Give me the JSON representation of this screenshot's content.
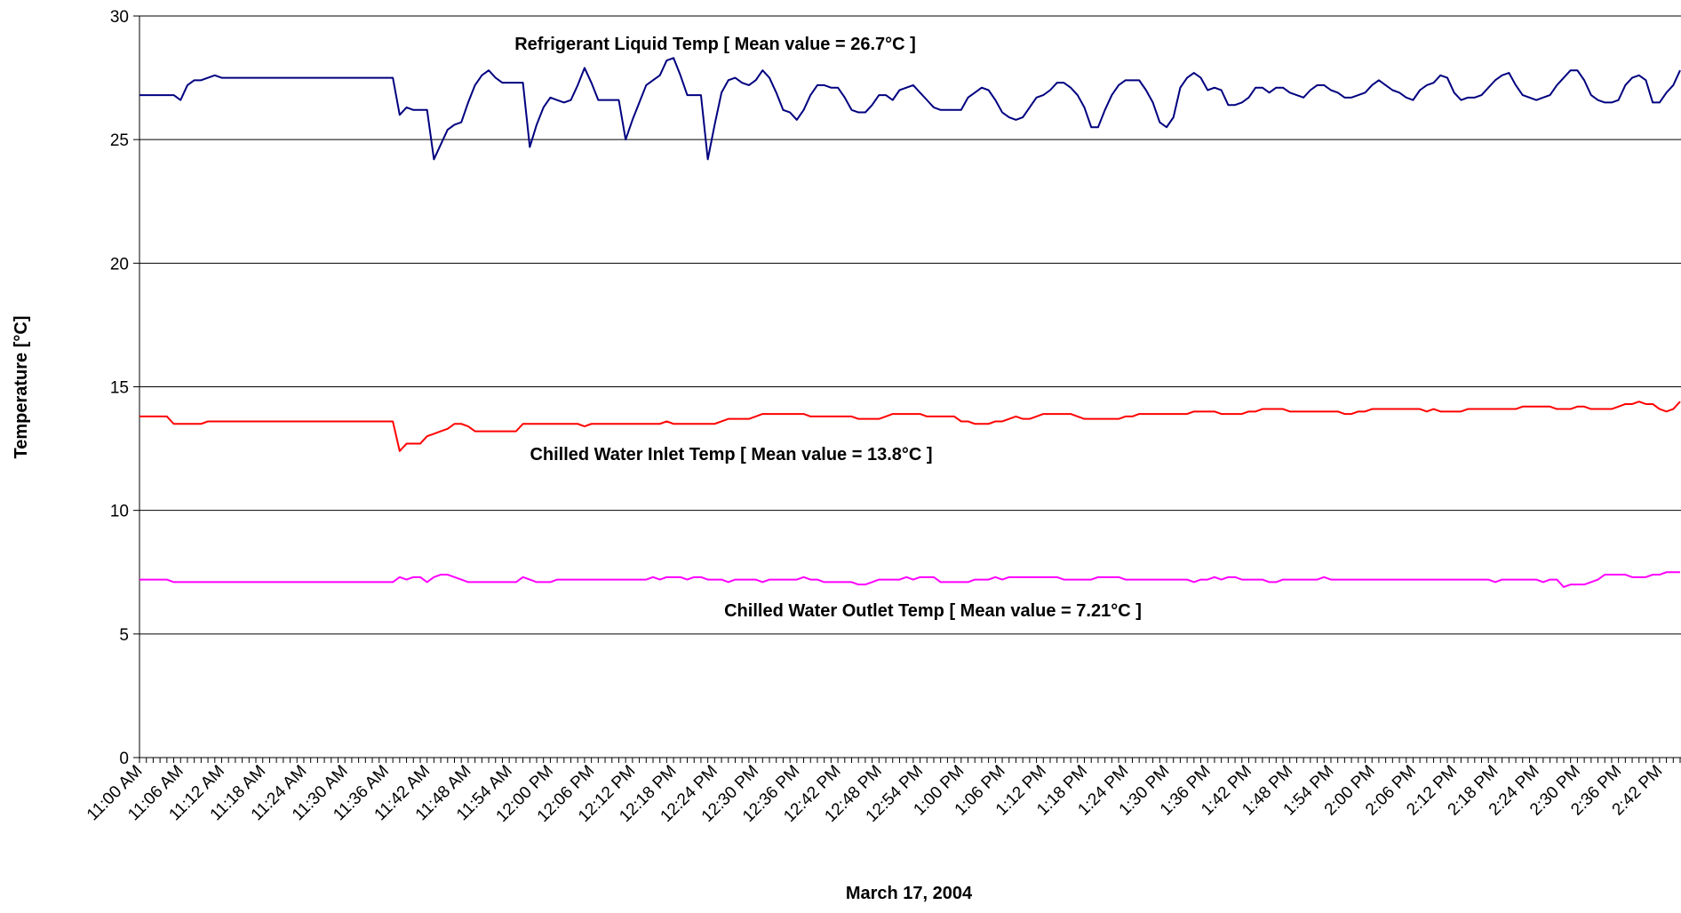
{
  "chart_data": {
    "type": "line",
    "ylabel": "Temperature [°C]",
    "xlabel": "March 17, 2004",
    "annotations": [
      "Refrigerant Liquid Temp [ Mean value = 26.7°C ]",
      "Chilled Water Inlet Temp [ Mean value = 13.8°C ]",
      "Chilled Water Outlet Temp [ Mean value = 7.21°C ]"
    ],
    "ylim": [
      0,
      30
    ],
    "yticks": [
      0,
      5,
      10,
      15,
      20,
      25,
      30
    ],
    "grid": true,
    "categories": [
      "11:00 AM",
      null,
      null,
      null,
      null,
      null,
      "11:06 AM",
      null,
      null,
      null,
      null,
      null,
      "11:12 AM",
      null,
      null,
      null,
      null,
      null,
      "11:18 AM",
      null,
      null,
      null,
      null,
      null,
      "11:24 AM",
      null,
      null,
      null,
      null,
      null,
      "11:30 AM",
      null,
      null,
      null,
      null,
      null,
      "11:36 AM",
      null,
      null,
      null,
      null,
      null,
      "11:42 AM",
      null,
      null,
      null,
      null,
      null,
      "11:48 AM",
      null,
      null,
      null,
      null,
      null,
      "11:54 AM",
      null,
      null,
      null,
      null,
      null,
      "12:00 PM",
      null,
      null,
      null,
      null,
      null,
      "12:06 PM",
      null,
      null,
      null,
      null,
      null,
      "12:12 PM",
      null,
      null,
      null,
      null,
      null,
      "12:18 PM",
      null,
      null,
      null,
      null,
      null,
      "12:24 PM",
      null,
      null,
      null,
      null,
      null,
      "12:30 PM",
      null,
      null,
      null,
      null,
      null,
      "12:36 PM",
      null,
      null,
      null,
      null,
      null,
      "12:42 PM",
      null,
      null,
      null,
      null,
      null,
      "12:48 PM",
      null,
      null,
      null,
      null,
      null,
      "12:54 PM",
      null,
      null,
      null,
      null,
      null,
      "1:00 PM",
      null,
      null,
      null,
      null,
      null,
      "1:06 PM",
      null,
      null,
      null,
      null,
      null,
      "1:12 PM",
      null,
      null,
      null,
      null,
      null,
      "1:18 PM",
      null,
      null,
      null,
      null,
      null,
      "1:24 PM",
      null,
      null,
      null,
      null,
      null,
      "1:30 PM",
      null,
      null,
      null,
      null,
      null,
      "1:36 PM",
      null,
      null,
      null,
      null,
      null,
      "1:42 PM",
      null,
      null,
      null,
      null,
      null,
      "1:48 PM",
      null,
      null,
      null,
      null,
      null,
      "1:54 PM",
      null,
      null,
      null,
      null,
      null,
      "2:00 PM",
      null,
      null,
      null,
      null,
      null,
      "2:06 PM",
      null,
      null,
      null,
      null,
      null,
      "2:12 PM",
      null,
      null,
      null,
      null,
      null,
      "2:18 PM",
      null,
      null,
      null,
      null,
      null,
      "2:24 PM",
      null,
      null,
      null,
      null,
      null,
      "2:30 PM",
      null,
      null,
      null,
      null,
      null,
      "2:36 PM",
      null,
      null,
      null,
      null,
      null,
      "2:42 PM",
      null,
      null,
      null
    ],
    "series": [
      {
        "color": "#000080",
        "values": [
          26.8,
          26.8,
          26.8,
          26.8,
          26.8,
          26.8,
          26.6,
          27.2,
          27.4,
          27.4,
          27.5,
          27.6,
          27.5,
          27.5,
          27.5,
          27.5,
          27.5,
          27.5,
          27.5,
          27.5,
          27.5,
          27.5,
          27.5,
          27.5,
          27.5,
          27.5,
          27.5,
          27.5,
          27.5,
          27.5,
          27.5,
          27.5,
          27.5,
          27.5,
          27.5,
          27.5,
          27.5,
          27.5,
          26.0,
          26.3,
          26.2,
          26.2,
          26.2,
          24.2,
          24.8,
          25.4,
          25.6,
          25.7,
          26.5,
          27.2,
          27.6,
          27.8,
          27.5,
          27.3,
          27.3,
          27.3,
          27.3,
          24.7,
          25.6,
          26.3,
          26.7,
          26.6,
          26.5,
          26.6,
          27.2,
          27.9,
          27.3,
          26.6,
          26.6,
          26.6,
          26.6,
          25.0,
          25.8,
          26.5,
          27.2,
          27.4,
          27.6,
          28.2,
          28.3,
          27.6,
          26.8,
          26.8,
          26.8,
          24.2,
          25.6,
          26.9,
          27.4,
          27.5,
          27.3,
          27.2,
          27.4,
          27.8,
          27.5,
          26.9,
          26.2,
          26.1,
          25.8,
          26.2,
          26.8,
          27.2,
          27.2,
          27.1,
          27.1,
          26.7,
          26.2,
          26.1,
          26.1,
          26.4,
          26.8,
          26.8,
          26.6,
          27.0,
          27.1,
          27.2,
          26.9,
          26.6,
          26.3,
          26.2,
          26.2,
          26.2,
          26.2,
          26.7,
          26.9,
          27.1,
          27.0,
          26.6,
          26.1,
          25.9,
          25.8,
          25.9,
          26.3,
          26.7,
          26.8,
          27.0,
          27.3,
          27.3,
          27.1,
          26.8,
          26.3,
          25.5,
          25.5,
          26.2,
          26.8,
          27.2,
          27.4,
          27.4,
          27.4,
          27.0,
          26.5,
          25.7,
          25.5,
          25.9,
          27.1,
          27.5,
          27.7,
          27.5,
          27.0,
          27.1,
          27.0,
          26.4,
          26.4,
          26.5,
          26.7,
          27.1,
          27.1,
          26.9,
          27.1,
          27.1,
          26.9,
          26.8,
          26.7,
          27.0,
          27.2,
          27.2,
          27.0,
          26.9,
          26.7,
          26.7,
          26.8,
          26.9,
          27.2,
          27.4,
          27.2,
          27.0,
          26.9,
          26.7,
          26.6,
          27.0,
          27.2,
          27.3,
          27.6,
          27.5,
          26.9,
          26.6,
          26.7,
          26.7,
          26.8,
          27.1,
          27.4,
          27.6,
          27.7,
          27.2,
          26.8,
          26.7,
          26.6,
          26.7,
          26.8,
          27.2,
          27.5,
          27.8,
          27.8,
          27.4,
          26.8,
          26.6,
          26.5,
          26.5,
          26.6,
          27.2,
          27.5,
          27.6,
          27.4,
          26.5,
          26.5,
          26.9,
          27.2,
          27.8
        ]
      },
      {
        "color": "#ff0000",
        "values": [
          13.8,
          13.8,
          13.8,
          13.8,
          13.8,
          13.5,
          13.5,
          13.5,
          13.5,
          13.5,
          13.6,
          13.6,
          13.6,
          13.6,
          13.6,
          13.6,
          13.6,
          13.6,
          13.6,
          13.6,
          13.6,
          13.6,
          13.6,
          13.6,
          13.6,
          13.6,
          13.6,
          13.6,
          13.6,
          13.6,
          13.6,
          13.6,
          13.6,
          13.6,
          13.6,
          13.6,
          13.6,
          13.6,
          12.4,
          12.7,
          12.7,
          12.7,
          13.0,
          13.1,
          13.2,
          13.3,
          13.5,
          13.5,
          13.4,
          13.2,
          13.2,
          13.2,
          13.2,
          13.2,
          13.2,
          13.2,
          13.5,
          13.5,
          13.5,
          13.5,
          13.5,
          13.5,
          13.5,
          13.5,
          13.5,
          13.4,
          13.5,
          13.5,
          13.5,
          13.5,
          13.5,
          13.5,
          13.5,
          13.5,
          13.5,
          13.5,
          13.5,
          13.6,
          13.5,
          13.5,
          13.5,
          13.5,
          13.5,
          13.5,
          13.5,
          13.6,
          13.7,
          13.7,
          13.7,
          13.7,
          13.8,
          13.9,
          13.9,
          13.9,
          13.9,
          13.9,
          13.9,
          13.9,
          13.8,
          13.8,
          13.8,
          13.8,
          13.8,
          13.8,
          13.8,
          13.7,
          13.7,
          13.7,
          13.7,
          13.8,
          13.9,
          13.9,
          13.9,
          13.9,
          13.9,
          13.8,
          13.8,
          13.8,
          13.8,
          13.8,
          13.6,
          13.6,
          13.5,
          13.5,
          13.5,
          13.6,
          13.6,
          13.7,
          13.8,
          13.7,
          13.7,
          13.8,
          13.9,
          13.9,
          13.9,
          13.9,
          13.9,
          13.8,
          13.7,
          13.7,
          13.7,
          13.7,
          13.7,
          13.7,
          13.8,
          13.8,
          13.9,
          13.9,
          13.9,
          13.9,
          13.9,
          13.9,
          13.9,
          13.9,
          14.0,
          14.0,
          14.0,
          14.0,
          13.9,
          13.9,
          13.9,
          13.9,
          14.0,
          14.0,
          14.1,
          14.1,
          14.1,
          14.1,
          14.0,
          14.0,
          14.0,
          14.0,
          14.0,
          14.0,
          14.0,
          14.0,
          13.9,
          13.9,
          14.0,
          14.0,
          14.1,
          14.1,
          14.1,
          14.1,
          14.1,
          14.1,
          14.1,
          14.1,
          14.0,
          14.1,
          14.0,
          14.0,
          14.0,
          14.0,
          14.1,
          14.1,
          14.1,
          14.1,
          14.1,
          14.1,
          14.1,
          14.1,
          14.2,
          14.2,
          14.2,
          14.2,
          14.2,
          14.1,
          14.1,
          14.1,
          14.2,
          14.2,
          14.1,
          14.1,
          14.1,
          14.1,
          14.2,
          14.3,
          14.3,
          14.4,
          14.3,
          14.3,
          14.1,
          14.0,
          14.1,
          14.4
        ]
      },
      {
        "color": "#ff00ff",
        "values": [
          7.2,
          7.2,
          7.2,
          7.2,
          7.2,
          7.1,
          7.1,
          7.1,
          7.1,
          7.1,
          7.1,
          7.1,
          7.1,
          7.1,
          7.1,
          7.1,
          7.1,
          7.1,
          7.1,
          7.1,
          7.1,
          7.1,
          7.1,
          7.1,
          7.1,
          7.1,
          7.1,
          7.1,
          7.1,
          7.1,
          7.1,
          7.1,
          7.1,
          7.1,
          7.1,
          7.1,
          7.1,
          7.1,
          7.3,
          7.2,
          7.3,
          7.3,
          7.1,
          7.3,
          7.4,
          7.4,
          7.3,
          7.2,
          7.1,
          7.1,
          7.1,
          7.1,
          7.1,
          7.1,
          7.1,
          7.1,
          7.3,
          7.2,
          7.1,
          7.1,
          7.1,
          7.2,
          7.2,
          7.2,
          7.2,
          7.2,
          7.2,
          7.2,
          7.2,
          7.2,
          7.2,
          7.2,
          7.2,
          7.2,
          7.2,
          7.3,
          7.2,
          7.3,
          7.3,
          7.3,
          7.2,
          7.3,
          7.3,
          7.2,
          7.2,
          7.2,
          7.1,
          7.2,
          7.2,
          7.2,
          7.2,
          7.1,
          7.2,
          7.2,
          7.2,
          7.2,
          7.2,
          7.3,
          7.2,
          7.2,
          7.1,
          7.1,
          7.1,
          7.1,
          7.1,
          7.0,
          7.0,
          7.1,
          7.2,
          7.2,
          7.2,
          7.2,
          7.3,
          7.2,
          7.3,
          7.3,
          7.3,
          7.1,
          7.1,
          7.1,
          7.1,
          7.1,
          7.2,
          7.2,
          7.2,
          7.3,
          7.2,
          7.3,
          7.3,
          7.3,
          7.3,
          7.3,
          7.3,
          7.3,
          7.3,
          7.2,
          7.2,
          7.2,
          7.2,
          7.2,
          7.3,
          7.3,
          7.3,
          7.3,
          7.2,
          7.2,
          7.2,
          7.2,
          7.2,
          7.2,
          7.2,
          7.2,
          7.2,
          7.2,
          7.1,
          7.2,
          7.2,
          7.3,
          7.2,
          7.3,
          7.3,
          7.2,
          7.2,
          7.2,
          7.2,
          7.1,
          7.1,
          7.2,
          7.2,
          7.2,
          7.2,
          7.2,
          7.2,
          7.3,
          7.2,
          7.2,
          7.2,
          7.2,
          7.2,
          7.2,
          7.2,
          7.2,
          7.2,
          7.2,
          7.2,
          7.2,
          7.2,
          7.2,
          7.2,
          7.2,
          7.2,
          7.2,
          7.2,
          7.2,
          7.2,
          7.2,
          7.2,
          7.2,
          7.1,
          7.2,
          7.2,
          7.2,
          7.2,
          7.2,
          7.2,
          7.1,
          7.2,
          7.2,
          6.9,
          7.0,
          7.0,
          7.0,
          7.1,
          7.2,
          7.4,
          7.4,
          7.4,
          7.4,
          7.3,
          7.3,
          7.3,
          7.4,
          7.4,
          7.5,
          7.5,
          7.5
        ]
      }
    ]
  }
}
